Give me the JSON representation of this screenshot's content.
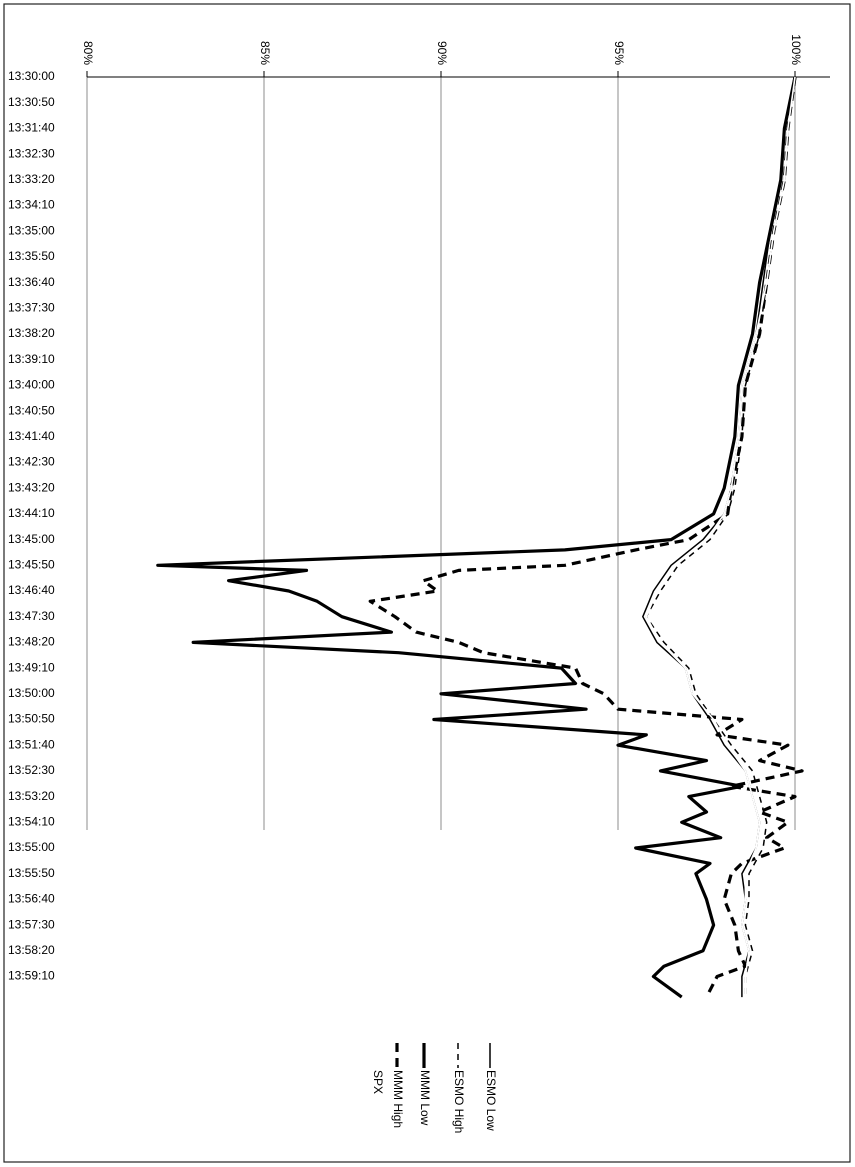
{
  "chart_data": {
    "type": "line",
    "orientation": "rotated-90-clockwise",
    "title": "",
    "xlabel": "",
    "ylabel": "",
    "ylim": [
      0.8,
      1.0
    ],
    "grid": true,
    "legend_position": "bottom",
    "y_ticks": [
      "80%",
      "85%",
      "90%",
      "95%",
      "100%"
    ],
    "x_ticks": [
      "13:30:00",
      "13:30:50",
      "13:31:40",
      "13:32:30",
      "13:33:20",
      "13:34:10",
      "13:35:00",
      "13:35:50",
      "13:36:40",
      "13:37:30",
      "13:38:20",
      "13:39:10",
      "13:40:00",
      "13:40:50",
      "13:41:40",
      "13:42:30",
      "13:43:20",
      "13:44:10",
      "13:45:00",
      "13:45:50",
      "13:46:40",
      "13:47:30",
      "13:48:20",
      "13:49:10",
      "13:50:00",
      "13:50:50",
      "13:51:40",
      "13:52:30",
      "13:53:20",
      "13:54:10",
      "13:55:00",
      "13:55:50",
      "13:56:40",
      "13:57:30",
      "13:58:20",
      "13:59:10"
    ],
    "series": [
      {
        "name": "ESMO Low",
        "style": "thin-solid",
        "x": [
          "13:30:00",
          "13:31:40",
          "13:33:20",
          "13:35:00",
          "13:36:40",
          "13:38:20",
          "13:40:00",
          "13:41:40",
          "13:43:20",
          "13:44:10",
          "13:45:00",
          "13:45:50",
          "13:46:40",
          "13:47:30",
          "13:48:20",
          "13:49:10",
          "13:50:00",
          "13:50:50",
          "13:51:40",
          "13:52:30",
          "13:53:20",
          "13:54:10",
          "13:55:00",
          "13:55:50",
          "13:56:40",
          "13:57:30",
          "13:58:20",
          "13:59:10",
          "13:59:50"
        ],
        "values": [
          1.0,
          0.997,
          0.996,
          0.993,
          0.991,
          0.989,
          0.985,
          0.984,
          0.982,
          0.98,
          0.974,
          0.965,
          0.96,
          0.957,
          0.961,
          0.969,
          0.971,
          0.976,
          0.98,
          0.986,
          0.988,
          0.99,
          0.989,
          0.985,
          0.986,
          0.985,
          0.987,
          0.985,
          0.985
        ]
      },
      {
        "name": "ESMO High",
        "style": "dashed-thin",
        "x": [
          "13:30:00",
          "13:31:40",
          "13:33:20",
          "13:35:00",
          "13:36:40",
          "13:38:20",
          "13:40:00",
          "13:41:40",
          "13:43:20",
          "13:44:10",
          "13:45:00",
          "13:45:50",
          "13:46:40",
          "13:47:30",
          "13:48:20",
          "13:49:10",
          "13:50:00",
          "13:50:50",
          "13:51:40",
          "13:52:30",
          "13:53:20",
          "13:54:10",
          "13:55:00",
          "13:55:50",
          "13:56:40",
          "13:57:30",
          "13:58:20",
          "13:59:10",
          "13:59:50"
        ],
        "values": [
          1.0,
          0.998,
          0.997,
          0.994,
          0.992,
          0.99,
          0.986,
          0.985,
          0.983,
          0.981,
          0.976,
          0.967,
          0.962,
          0.958,
          0.963,
          0.97,
          0.972,
          0.977,
          0.982,
          0.988,
          0.99,
          0.992,
          0.991,
          0.987,
          0.987,
          0.986,
          0.988,
          0.986,
          0.986
        ]
      },
      {
        "name": "MMM Low",
        "style": "thick-solid",
        "x": [
          "13:30:00",
          "13:31:40",
          "13:33:20",
          "13:35:00",
          "13:36:40",
          "13:38:20",
          "13:40:00",
          "13:41:40",
          "13:43:20",
          "13:44:10",
          "13:45:00",
          "13:45:20",
          "13:45:50",
          "13:46:00",
          "13:46:20",
          "13:46:40",
          "13:47:00",
          "13:47:30",
          "13:48:00",
          "13:48:20",
          "13:48:40",
          "13:49:10",
          "13:49:40",
          "13:50:00",
          "13:50:30",
          "13:50:50",
          "13:51:20",
          "13:51:40",
          "13:52:10",
          "13:52:30",
          "13:53:00",
          "13:53:20",
          "13:53:50",
          "13:54:10",
          "13:54:40",
          "13:55:00",
          "13:55:30",
          "13:55:50",
          "13:56:40",
          "13:57:30",
          "13:58:20",
          "13:58:50",
          "13:59:10",
          "13:59:50"
        ],
        "values": [
          1.0,
          0.997,
          0.996,
          0.993,
          0.99,
          0.988,
          0.984,
          0.983,
          0.98,
          0.977,
          0.965,
          0.935,
          0.82,
          0.862,
          0.84,
          0.857,
          0.865,
          0.872,
          0.886,
          0.83,
          0.888,
          0.934,
          0.938,
          0.9,
          0.941,
          0.898,
          0.958,
          0.95,
          0.975,
          0.962,
          0.985,
          0.97,
          0.975,
          0.968,
          0.979,
          0.955,
          0.976,
          0.972,
          0.975,
          0.977,
          0.974,
          0.963,
          0.96,
          0.968
        ]
      },
      {
        "name": "MMM High",
        "style": "thick-dashed",
        "x": [
          "13:30:00",
          "13:31:40",
          "13:33:20",
          "13:35:00",
          "13:36:40",
          "13:38:20",
          "13:40:00",
          "13:41:40",
          "13:43:20",
          "13:44:10",
          "13:45:00",
          "13:45:20",
          "13:45:50",
          "13:46:00",
          "13:46:20",
          "13:46:40",
          "13:47:00",
          "13:47:30",
          "13:48:00",
          "13:48:20",
          "13:48:40",
          "13:49:10",
          "13:49:40",
          "13:50:00",
          "13:50:30",
          "13:50:50",
          "13:51:20",
          "13:51:40",
          "13:52:10",
          "13:52:30",
          "13:53:00",
          "13:53:20",
          "13:53:50",
          "13:54:10",
          "13:54:40",
          "13:55:00",
          "13:55:30",
          "13:55:50",
          "13:56:40",
          "13:57:30",
          "13:58:20",
          "13:58:50",
          "13:59:10",
          "13:59:50"
        ],
        "values": [
          1.0,
          0.998,
          0.997,
          0.994,
          0.992,
          0.99,
          0.986,
          0.985,
          0.982,
          0.981,
          0.97,
          0.955,
          0.935,
          0.905,
          0.895,
          0.899,
          0.88,
          0.887,
          0.893,
          0.905,
          0.912,
          0.938,
          0.94,
          0.946,
          0.95,
          0.985,
          0.978,
          0.998,
          0.99,
          1.002,
          0.982,
          1.0,
          0.99,
          0.998,
          0.992,
          0.997,
          0.985,
          0.982,
          0.98,
          0.983,
          0.984,
          0.986,
          0.978,
          0.975
        ]
      },
      {
        "name": "SPX",
        "style": "white-thin",
        "x": [
          "13:30:00",
          "13:31:40",
          "13:33:20",
          "13:35:00",
          "13:36:40",
          "13:38:20",
          "13:40:00",
          "13:41:40",
          "13:43:20",
          "13:44:10",
          "13:45:00",
          "13:45:50",
          "13:46:40",
          "13:47:30",
          "13:48:20",
          "13:49:10",
          "13:50:00",
          "13:50:50",
          "13:51:40",
          "13:52:30",
          "13:53:20",
          "13:54:10",
          "13:55:00",
          "13:55:50",
          "13:56:40",
          "13:57:30",
          "13:58:20",
          "13:59:10",
          "13:59:50"
        ],
        "values": [
          1.0,
          0.998,
          0.997,
          0.994,
          0.992,
          0.989,
          0.985,
          0.984,
          0.982,
          0.98,
          0.975,
          0.966,
          0.961,
          0.958,
          0.962,
          0.969,
          0.971,
          0.977,
          0.981,
          0.986,
          0.988,
          0.99,
          0.989,
          0.986,
          0.986,
          0.985,
          0.987,
          0.986,
          0.986
        ]
      }
    ]
  }
}
